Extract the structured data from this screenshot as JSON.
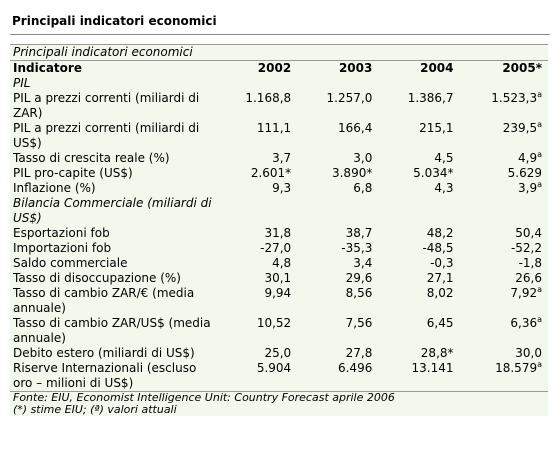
{
  "title": "Principali indicatori economici",
  "table": {
    "caption": "Principali indicatori economici",
    "columns": [
      "Indicatore",
      "2002",
      "2003",
      "2004",
      "2005*"
    ],
    "rows": [
      {
        "section": "PIL"
      },
      {
        "label": "PIL a prezzi correnti (miliardi di ZAR)",
        "cells": [
          "1.168,8",
          "1.257,0",
          "1.386,7",
          {
            "text": "1.523,3",
            "sup": "a"
          }
        ]
      },
      {
        "label": "PIL a prezzi correnti (miliardi di US$)",
        "cells": [
          "111,1",
          "166,4",
          "215,1",
          {
            "text": "239,5",
            "sup": "a"
          }
        ]
      },
      {
        "label": "Tasso di crescita reale (%)",
        "cells": [
          "3,7",
          "3,0",
          "4,5",
          {
            "text": "4,9",
            "sup": "a"
          }
        ]
      },
      {
        "label": "PIL pro-capite (US$)",
        "cells": [
          "2.601*",
          "3.890*",
          "5.034*",
          "5.629"
        ]
      },
      {
        "label": "Inflazione (%)",
        "cells": [
          "9,3",
          "6,8",
          "4,3",
          {
            "text": "3,9",
            "sup": "a"
          }
        ]
      },
      {
        "section": "Bilancia Commerciale (miliardi di US$)"
      },
      {
        "label": "Esportazioni fob",
        "cells": [
          "31,8",
          "38,7",
          "48,2",
          "50,4"
        ]
      },
      {
        "label": "Importazioni fob",
        "cells": [
          "-27,0",
          "-35,3",
          "-48,5",
          "-52,2"
        ]
      },
      {
        "label": "Saldo commerciale",
        "cells": [
          "4,8",
          "3,4",
          "-0,3",
          "-1,8"
        ]
      },
      {
        "label": "Tasso di disoccupazione (%)",
        "cells": [
          "30,1",
          "29,6",
          "27,1",
          "26,6"
        ]
      },
      {
        "label": "Tasso di cambio ZAR/€ (media annuale)",
        "cells": [
          "9,94",
          "8,56",
          "8,02",
          {
            "text": "7,92",
            "sup": "a"
          }
        ]
      },
      {
        "label": "Tasso di cambio ZAR/US$ (media annuale)",
        "cells": [
          "10,52",
          "7,56",
          "6,45",
          {
            "text": "6,36",
            "sup": "a"
          }
        ]
      },
      {
        "label": "Debito estero (miliardi di US$)",
        "cells": [
          "25,0",
          "27,8",
          "28,8*",
          "30,0"
        ]
      },
      {
        "label": "Riserve Internazionali (escluso oro – milioni di US$)",
        "cells": [
          "5.904",
          "6.496",
          "13.141",
          {
            "text": "18.579",
            "sup": "a"
          }
        ]
      }
    ],
    "footnotes": [
      "Fonte: EIU, Economist Intelligence Unit: Country Forecast aprile 2006",
      "(*) stime EIU; (ª) valori attuali"
    ]
  }
}
